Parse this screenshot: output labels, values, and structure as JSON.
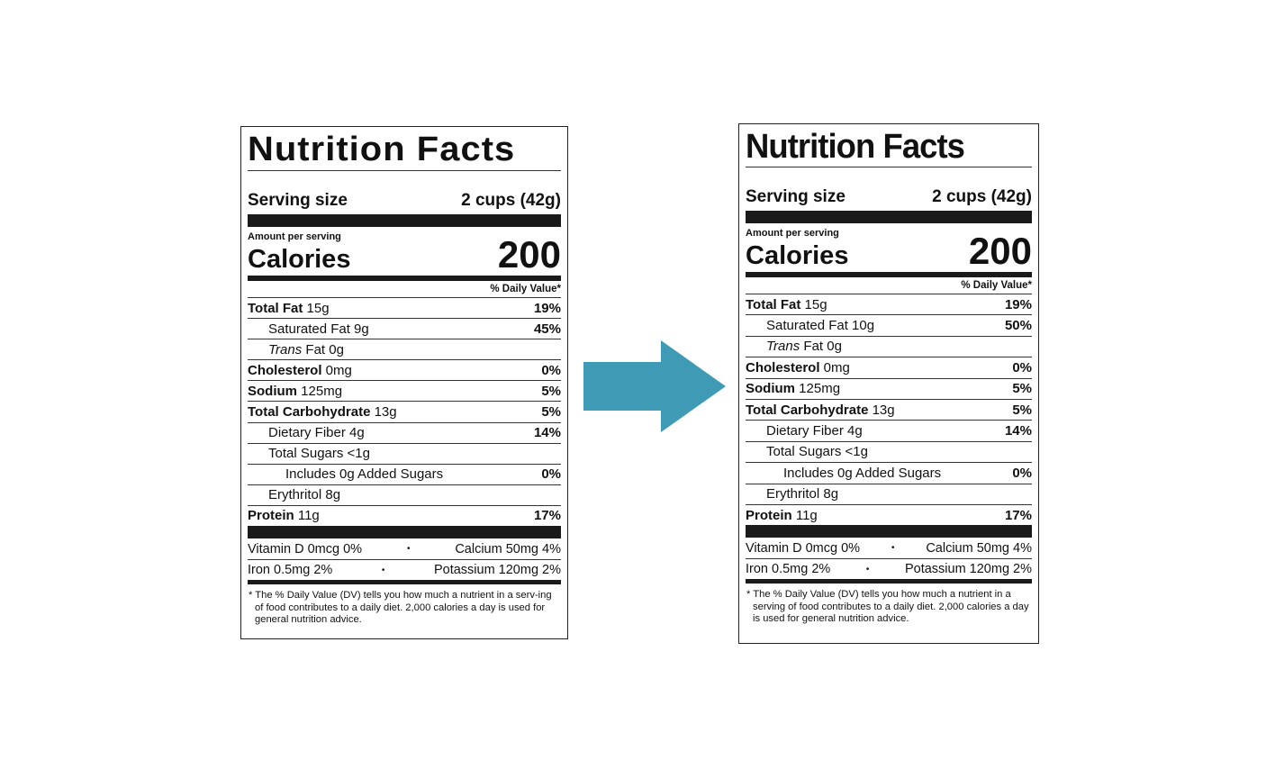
{
  "labels": [
    {
      "title": "Nutrition Facts",
      "serving_label": "Serving size",
      "serving_value": "2 cups (42g)",
      "amount_per_serving": "Amount per serving",
      "calories_label": "Calories",
      "calories_value": "200",
      "dv_header": "% Daily Value*",
      "nutrients": [
        {
          "prefix": "Total Fat",
          "amount": " 15g",
          "dv": "19%"
        },
        {
          "prefix": "",
          "amount": "Saturated Fat 9g",
          "dv": "45%"
        },
        {
          "italic": "Trans",
          "amount": " Fat 0g",
          "dv": ""
        },
        {
          "prefix": "Cholesterol",
          "amount": " 0mg",
          "dv": "0%"
        },
        {
          "prefix": "Sodium",
          "amount": " 125mg",
          "dv": "5%"
        },
        {
          "prefix": "Total Carbohydrate",
          "amount": " 13g",
          "dv": "5%"
        },
        {
          "prefix": "",
          "amount": "Dietary Fiber 4g",
          "dv": "14%"
        },
        {
          "prefix": "",
          "amount": "Total Sugars <1g",
          "dv": ""
        },
        {
          "prefix": "",
          "amount": "Includes 0g Added Sugars",
          "dv": "0%"
        },
        {
          "prefix": "",
          "amount": "Erythritol 8g",
          "dv": ""
        },
        {
          "prefix": "Protein",
          "amount": " 11g",
          "dv": "17%"
        }
      ],
      "vitamins": [
        {
          "left": "Vitamin D 0mcg 0%",
          "dot": "•",
          "right": "Calcium 50mg 4%"
        },
        {
          "left": "Iron 0.5mg 2%",
          "dot": "•",
          "right": "Potassium 120mg 2%"
        }
      ],
      "footnote": "* The % Daily Value (DV) tells you how much a nutrient in a serv-ing of food contributes to a daily diet. 2,000 calories a day is used for general nutrition advice."
    },
    {
      "title": "Nutrition Facts",
      "serving_label": "Serving size",
      "serving_value": "2 cups (42g)",
      "amount_per_serving": "Amount per serving",
      "calories_label": "Calories",
      "calories_value": "200",
      "dv_header": "% Daily Value*",
      "nutrients": [
        {
          "prefix": "Total Fat",
          "amount": " 15g",
          "dv": "19%"
        },
        {
          "prefix": "",
          "amount": "Saturated Fat 10g",
          "dv": "50%"
        },
        {
          "italic": "Trans",
          "amount": " Fat 0g",
          "dv": ""
        },
        {
          "prefix": "Cholesterol",
          "amount": " 0mg",
          "dv": "0%"
        },
        {
          "prefix": "Sodium",
          "amount": " 125mg",
          "dv": "5%"
        },
        {
          "prefix": "Total Carbohydrate",
          "amount": " 13g",
          "dv": "5%"
        },
        {
          "prefix": "",
          "amount": "Dietary Fiber 4g",
          "dv": "14%"
        },
        {
          "prefix": "",
          "amount": "Total Sugars <1g",
          "dv": ""
        },
        {
          "prefix": "",
          "amount": "Includes 0g Added Sugars",
          "dv": "0%"
        },
        {
          "prefix": "",
          "amount": "Erythritol 8g",
          "dv": ""
        },
        {
          "prefix": "Protein",
          "amount": " 11g",
          "dv": "17%"
        }
      ],
      "vitamins": [
        {
          "left": "Vitamin D 0mcg 0%",
          "dot": "•",
          "right": "Calcium 50mg 4%"
        },
        {
          "left": "Iron 0.5mg 2%",
          "dot": "•",
          "right": "Potassium 120mg 2%"
        }
      ],
      "footnote": "* The % Daily Value (DV) tells you how much a nutrient in a serving of food contributes to a daily diet. 2,000 calories a day is used for general nutrition advice."
    }
  ],
  "arrow": {
    "icon": "right-arrow-icon",
    "color": "#3f9bb5"
  }
}
